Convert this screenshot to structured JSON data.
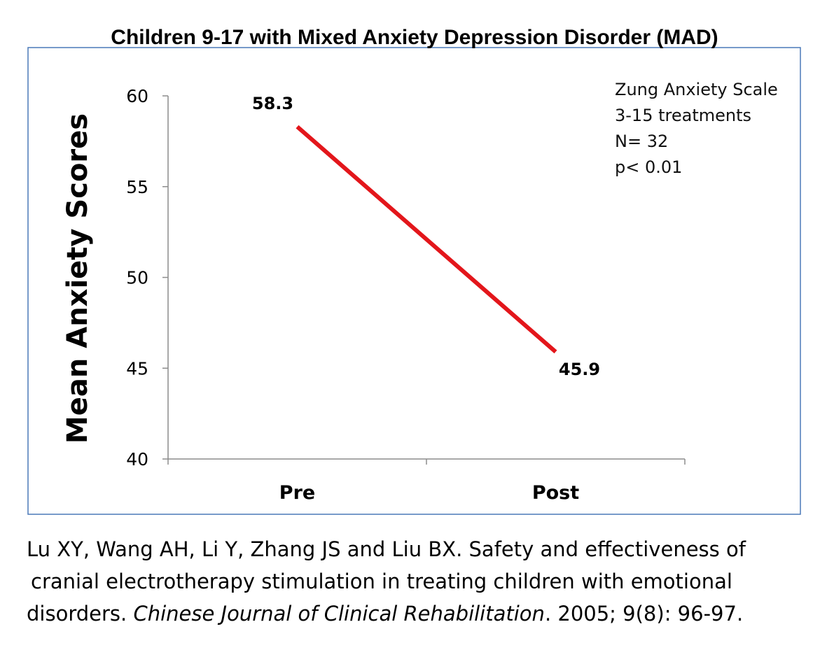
{
  "chart_data": {
    "type": "line",
    "title": "Children 9-17 with Mixed Anxiety Depression Disorder (MAD)",
    "ylabel": "Mean Anxiety Scores",
    "xlabel": "",
    "categories": [
      "Pre",
      "Post"
    ],
    "series": [
      {
        "name": "",
        "values": [
          58.3,
          45.9
        ],
        "labels": [
          "58.3",
          "45.9"
        ]
      }
    ],
    "ylim": [
      40,
      60
    ],
    "yticks": [
      40,
      45,
      50,
      55,
      60
    ],
    "ytick_labels": [
      "40",
      "45",
      "50",
      "55",
      "60"
    ],
    "grid": false,
    "line_color": "#e3161b",
    "annotation_lines": [
      "Zung Anxiety Scale",
      "3-15 treatments",
      "N= 32",
      "p< 0.01"
    ]
  },
  "citation": {
    "line1": "Lu XY, Wang AH, Li Y, Zhang JS and Liu BX. Safety and effectiveness of",
    "line2": "cranial electrotherapy stimulation in treating children with emotional",
    "line3_prefix": "disorders. ",
    "journal": "Chinese Journal of Clinical Rehabilitation",
    "line3_suffix": ". 2005; 9(8): 96-97."
  }
}
